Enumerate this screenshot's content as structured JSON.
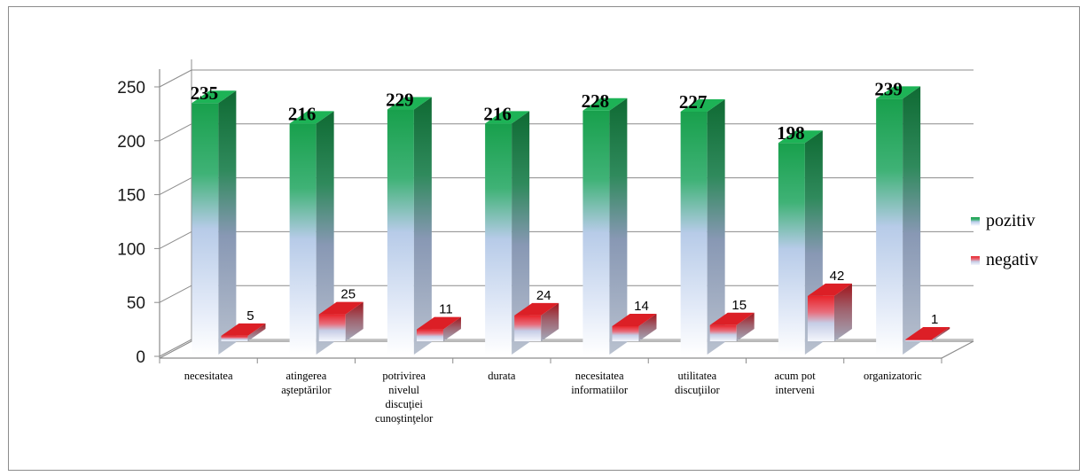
{
  "chart_data": {
    "type": "bar",
    "categories": [
      [
        "necesitatea"
      ],
      [
        "atingerea",
        "aşteptărilor"
      ],
      [
        "potrivirea",
        "nivelul",
        "discuţiei",
        "cunoştinţelor"
      ],
      [
        "durata"
      ],
      [
        "necesitatea",
        "informatiilor"
      ],
      [
        "utilitatea",
        "discuţiilor"
      ],
      [
        "acum pot",
        "interveni"
      ],
      [
        "organizatoric"
      ]
    ],
    "series": [
      {
        "name": "pozitiv",
        "values": [
          235,
          216,
          229,
          216,
          228,
          227,
          198,
          239
        ],
        "color": "#1a9e4a"
      },
      {
        "name": "negativ",
        "values": [
          5,
          25,
          11,
          24,
          14,
          15,
          42,
          1
        ],
        "color": "#e8232a"
      }
    ],
    "yticks": [
      "0",
      "50",
      "100",
      "150",
      "200",
      "250"
    ],
    "ylim": [
      0,
      250
    ],
    "grid": true,
    "legend": "right",
    "title": "",
    "xlabel": "",
    "ylabel": ""
  }
}
